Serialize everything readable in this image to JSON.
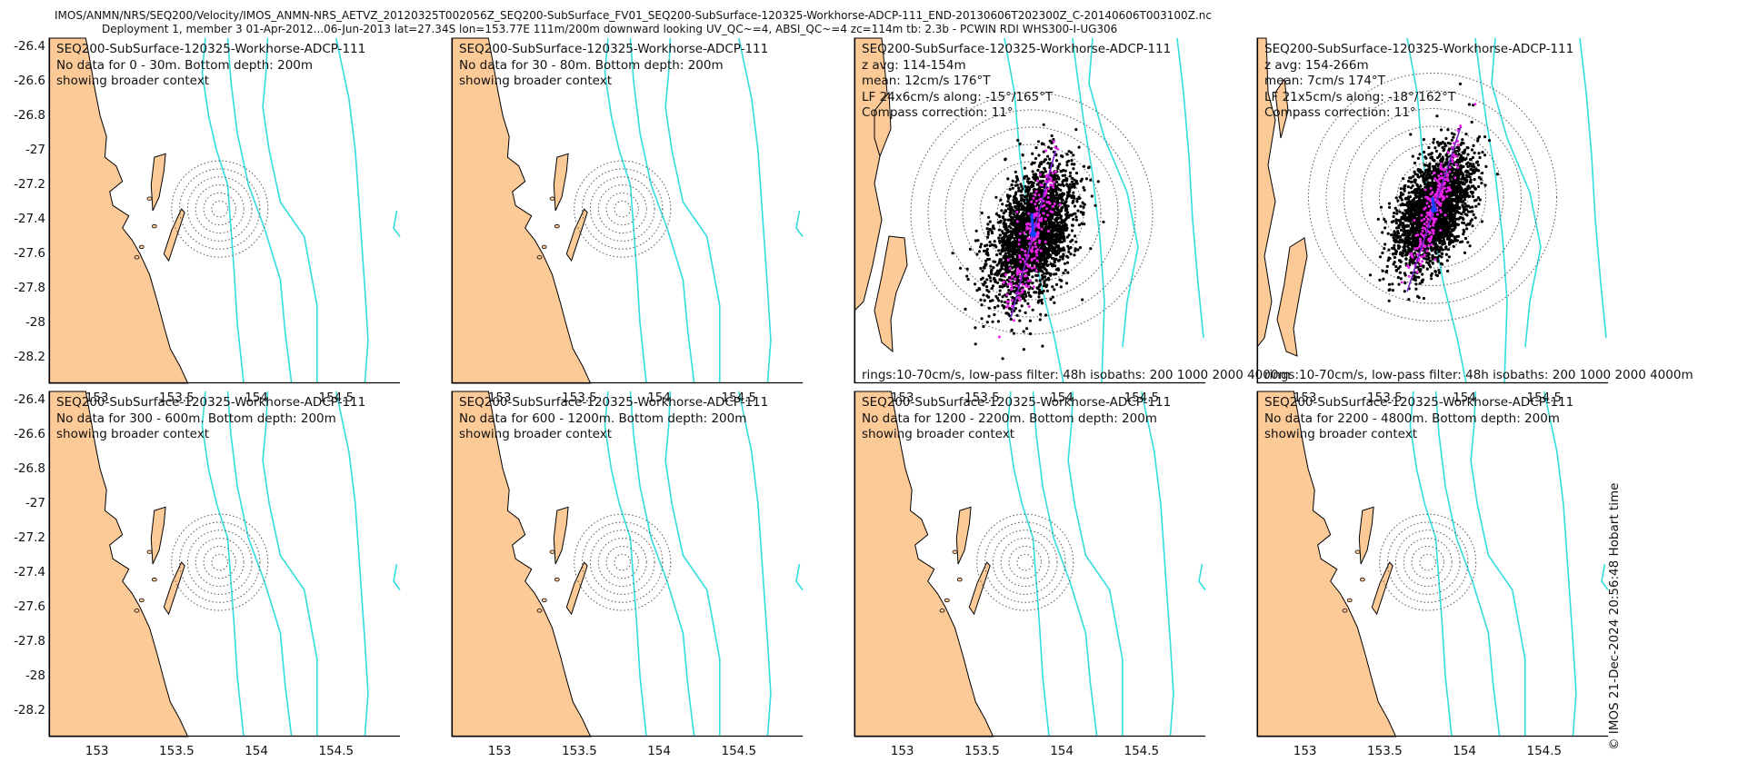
{
  "figure": {
    "title_line1": "IMOS/ANMN/NRS/SEQ200/Velocity/IMOS_ANMN-NRS_AETVZ_20120325T002056Z_SEQ200-SubSurface_FV01_SEQ200-SubSurface-120325-Workhorse-ADCP-111_END-20130606T202300Z_C-20140606T003100Z.nc",
    "title_line2": "Deployment 1, member 3 01-Apr-2012...06-Jun-2013 lat=27.34S lon=153.77E 111m/200m downward looking UV_QC~=4, ABSI_QC~=4 zc=114m tb: 2.3b - PCWIN RDI WHS300-I-UG306",
    "credit": "© IMOS 21-Dec-2024 20:56:48 Hobart time",
    "colors": {
      "land": "#fcca97",
      "isobath": "#33dddd",
      "rings": "#555555",
      "scatter": "#000000",
      "lowpass": "#ee22ee",
      "axis": "#7722cc",
      "mean": "#1144ff"
    }
  },
  "chart_data": [
    {
      "type": "scatter",
      "panel": 1,
      "xlim": [
        152.7,
        154.9
      ],
      "ylim": [
        -28.35,
        -26.35
      ],
      "xticks": [
        "153",
        "153.5",
        "154",
        "154.5"
      ],
      "yticks": [
        "-26.4",
        "-26.6",
        "-26.8",
        "-27",
        "-27.2",
        "-27.4",
        "-27.6",
        "-27.8",
        "-28",
        "-28.2"
      ],
      "lines": [
        "SEQ200-SubSurface-120325-Workhorse-ADCP-111",
        "No data for 0 - 30m. Bottom depth: 200m",
        "showing broader context"
      ],
      "footer": "",
      "has_data": false,
      "rings_center": [
        153.77,
        -27.34
      ],
      "rings": 6
    },
    {
      "type": "scatter",
      "panel": 2,
      "xlim": [
        152.7,
        154.9
      ],
      "ylim": [
        -28.35,
        -26.35
      ],
      "xticks": [
        "153",
        "153.5",
        "154",
        "154.5"
      ],
      "yticks": [],
      "lines": [
        "SEQ200-SubSurface-120325-Workhorse-ADCP-111",
        "No data for 30 - 80m. Bottom depth: 200m",
        "showing broader context"
      ],
      "footer": "",
      "has_data": false,
      "rings_center": [
        153.77,
        -27.34
      ],
      "rings": 6
    },
    {
      "type": "scatter",
      "panel": 3,
      "xlim": [
        152.7,
        154.9
      ],
      "ylim": [
        -28.35,
        -26.35
      ],
      "xticks": [
        "153",
        "153.5",
        "154",
        "154.5"
      ],
      "yticks": [],
      "lines": [
        "SEQ200-SubSurface-120325-Workhorse-ADCP-111",
        "z avg: 114-154m",
        "mean: 12cm/s 176°T",
        "LF 24x6cm/s along: -15°/165°T",
        "Compass correction: 11°"
      ],
      "footer": "rings:10-70cm/s, low-pass filter: 48h isobaths: 200 1000 2000 4000m",
      "has_data": true,
      "mean_speed_cms": 12,
      "mean_dir_degT": 176,
      "lf_major_cms": 24,
      "lf_minor_cms": 6,
      "along_deg": -15,
      "rings_cms": [
        10,
        20,
        30,
        40,
        50,
        60,
        70
      ]
    },
    {
      "type": "scatter",
      "panel": 4,
      "xlim": [
        152.7,
        154.9
      ],
      "ylim": [
        -28.35,
        -26.35
      ],
      "xticks": [
        "153",
        "153.5",
        "154",
        "154.5"
      ],
      "yticks": [],
      "lines": [
        "SEQ200-SubSurface-120325-Workhorse-ADCP-111",
        "z avg: 154-266m",
        "mean: 7cm/s 174°T",
        "LF 21x5cm/s along: -18°/162°T",
        "Compass correction: 11°"
      ],
      "footer": "rings:10-70cm/s, low-pass filter: 48h isobaths: 200 1000 2000 4000m",
      "has_data": true,
      "mean_speed_cms": 7,
      "mean_dir_degT": 174,
      "lf_major_cms": 21,
      "lf_minor_cms": 5,
      "along_deg": -18,
      "rings_cms": [
        10,
        20,
        30,
        40,
        50,
        60,
        70
      ]
    },
    {
      "type": "scatter",
      "panel": 5,
      "xlim": [
        152.7,
        154.9
      ],
      "ylim": [
        -28.35,
        -26.35
      ],
      "xticks": [
        "153",
        "153.5",
        "154",
        "154.5"
      ],
      "yticks": [
        "-26.4",
        "-26.6",
        "-26.8",
        "-27",
        "-27.2",
        "-27.4",
        "-27.6",
        "-27.8",
        "-28",
        "-28.2"
      ],
      "lines": [
        "SEQ200-SubSurface-120325-Workhorse-ADCP-111",
        "No data for 300 - 600m. Bottom depth: 200m",
        "showing broader context"
      ],
      "footer": "",
      "has_data": false,
      "rings_center": [
        153.77,
        -27.34
      ],
      "rings": 6
    },
    {
      "type": "scatter",
      "panel": 6,
      "xlim": [
        152.7,
        154.9
      ],
      "ylim": [
        -28.35,
        -26.35
      ],
      "xticks": [
        "153",
        "153.5",
        "154",
        "154.5"
      ],
      "yticks": [],
      "lines": [
        "SEQ200-SubSurface-120325-Workhorse-ADCP-111",
        "No data for 600 - 1200m. Bottom depth: 200m",
        "showing broader context"
      ],
      "footer": "",
      "has_data": false,
      "rings_center": [
        153.77,
        -27.34
      ],
      "rings": 6
    },
    {
      "type": "scatter",
      "panel": 7,
      "xlim": [
        152.7,
        154.9
      ],
      "ylim": [
        -28.35,
        -26.35
      ],
      "xticks": [
        "153",
        "153.5",
        "154",
        "154.5"
      ],
      "yticks": [],
      "lines": [
        "SEQ200-SubSurface-120325-Workhorse-ADCP-111",
        "No data for 1200 - 2200m. Bottom depth: 200m",
        "showing broader context"
      ],
      "footer": "",
      "has_data": false,
      "rings_center": [
        153.77,
        -27.34
      ],
      "rings": 6
    },
    {
      "type": "scatter",
      "panel": 8,
      "xlim": [
        152.7,
        154.9
      ],
      "ylim": [
        -28.35,
        -26.35
      ],
      "xticks": [
        "153",
        "153.5",
        "154",
        "154.5"
      ],
      "yticks": [],
      "lines": [
        "SEQ200-SubSurface-120325-Workhorse-ADCP-111",
        "No data for 2200 - 4800m. Bottom depth: 200m",
        "showing broader context"
      ],
      "footer": "",
      "has_data": false,
      "rings_center": [
        153.77,
        -27.34
      ],
      "rings": 6
    }
  ]
}
